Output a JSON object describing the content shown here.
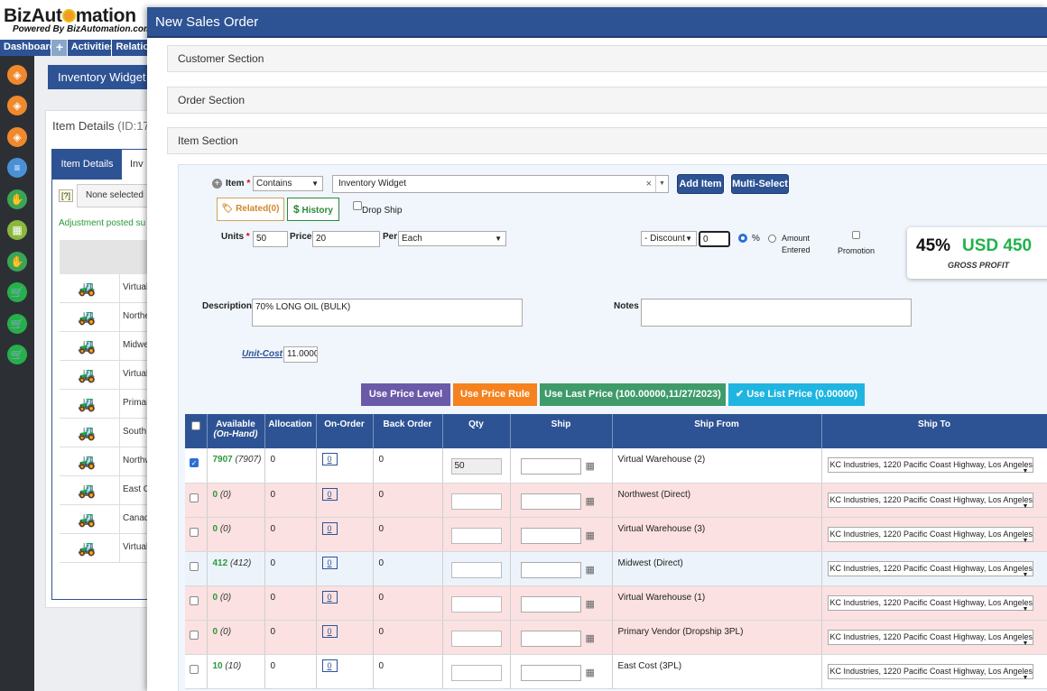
{
  "app": {
    "logo_text": "BizAut",
    "logo_text_2": "mation",
    "logo_sub": "Powered By BizAutomation.com",
    "nav": [
      "Dashboard",
      "Activities",
      "Relatio"
    ],
    "nav_plus": "+",
    "page_title": "Inventory Widget",
    "panel_title": "Item Details",
    "panel_id": "(ID:17",
    "tabs": [
      "Item Details",
      "Inv"
    ],
    "help_badge": "[?]",
    "select_value": "None selected",
    "message": "Adjustment posted su",
    "warehouses": [
      "Virtual",
      "Northe",
      "Midwe",
      "Virtual",
      "Primar",
      "South",
      "Northw",
      "East C",
      "Canad",
      "Virtual"
    ]
  },
  "modal": {
    "title": "New Sales Order",
    "sections": [
      "Customer Section",
      "Order Section",
      "Item Section"
    ],
    "item": {
      "label": "Item",
      "match_mode": "Contains",
      "search_value": "Inventory Widget",
      "clear": "×",
      "add_item": "Add Item",
      "multi_select": "Multi-Select",
      "related": "Related(0)",
      "history": "History",
      "drop_ship": "Drop Ship"
    },
    "pricing": {
      "units_label": "Units",
      "units_value": "50",
      "price_label": "Price",
      "price_value": "20",
      "per_label": "Per",
      "per_value": "Each",
      "discount_value": "- Discount",
      "discount_amount": "0",
      "percent_label": "%",
      "amount_label_1": "Amount",
      "amount_label_2": "Entered",
      "promotion_label": "Promotion"
    },
    "profit": {
      "percent": "45%",
      "amount": "USD 450",
      "label": "GROSS PROFIT"
    },
    "description_label": "Description",
    "description_value": "70% LONG OIL (BULK)",
    "notes_label": "Notes",
    "notes_value": "",
    "unit_cost_label": "Unit-Cost",
    "unit_cost_value": "11.0000",
    "price_buttons": {
      "price_level": "Use Price Level",
      "price_rule": "Use Price Rule",
      "last_price": "Use Last Price (100.00000,11/27/2023)",
      "list_price": "Use List Price (0.00000)"
    },
    "grid": {
      "headers": {
        "available": "Available",
        "on_hand": "(On-Hand)",
        "allocation": "Allocation",
        "on_order": "On-Order",
        "back_order": "Back Order",
        "qty": "Qty",
        "ship": "Ship",
        "ship_from": "Ship From",
        "ship_to": "Ship To"
      },
      "rows": [
        {
          "checked": true,
          "available": "7907",
          "on_hand": "(7907)",
          "allocation": "0",
          "on_order": "0",
          "back_order": "0",
          "qty": "50",
          "ship_from": "Virtual Warehouse (2)",
          "ship_to": "KC Industries, 1220 Pacific Coast Highway, Los Angeles"
        },
        {
          "checked": false,
          "available": "0",
          "on_hand": "(0)",
          "allocation": "0",
          "on_order": "0",
          "back_order": "0",
          "qty": "",
          "ship_from": "Northwest (Direct)",
          "ship_to": "KC Industries, 1220 Pacific Coast Highway, Los Angeles"
        },
        {
          "checked": false,
          "available": "0",
          "on_hand": "(0)",
          "allocation": "0",
          "on_order": "0",
          "back_order": "0",
          "qty": "",
          "ship_from": "Virtual Warehouse (3)",
          "ship_to": "KC Industries, 1220 Pacific Coast Highway, Los Angeles"
        },
        {
          "checked": false,
          "available": "412",
          "on_hand": "(412)",
          "allocation": "0",
          "on_order": "0",
          "back_order": "0",
          "qty": "",
          "ship_from": "Midwest (Direct)",
          "ship_to": "KC Industries, 1220 Pacific Coast Highway, Los Angeles"
        },
        {
          "checked": false,
          "available": "0",
          "on_hand": "(0)",
          "allocation": "0",
          "on_order": "0",
          "back_order": "0",
          "qty": "",
          "ship_from": "Virtual Warehouse (1)",
          "ship_to": "KC Industries, 1220 Pacific Coast Highway, Los Angeles"
        },
        {
          "checked": false,
          "available": "0",
          "on_hand": "(0)",
          "allocation": "0",
          "on_order": "0",
          "back_order": "0",
          "qty": "",
          "ship_from": "Primary Vendor (Dropship 3PL)",
          "ship_to": "KC Industries, 1220 Pacific Coast Highway, Los Angeles"
        },
        {
          "checked": false,
          "available": "10",
          "on_hand": "(10)",
          "allocation": "0",
          "on_order": "0",
          "back_order": "0",
          "qty": "",
          "ship_from": "East Cost (3PL)",
          "ship_to": "KC Industries, 1220 Pacific Coast Highway, Los Angeles"
        }
      ]
    }
  },
  "colors": {
    "brand": "#2e5394",
    "available": "#2a9a3a",
    "price_level": "#6a5aa8",
    "price_rule": "#f5821f",
    "last_price": "#3f9b6a",
    "list_price": "#1fb5e0"
  }
}
